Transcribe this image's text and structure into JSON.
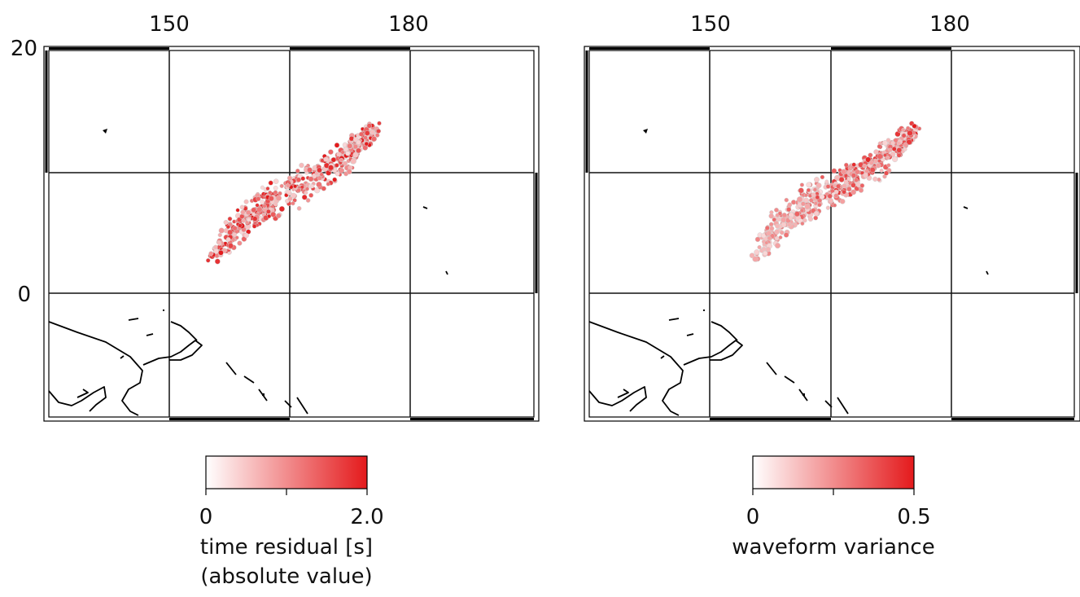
{
  "maps": [
    {
      "id": "time-residual",
      "lon_ticks": [
        "150",
        "180"
      ],
      "lat_ticks": [
        "20",
        "0"
      ],
      "colorbar": {
        "min_label": "0",
        "max_label": "2.0",
        "min": 0,
        "max": 2.0,
        "label_lines": [
          "time residual [s]",
          "(absolute value)"
        ],
        "color_low": "#ffffff",
        "color_high": "#e41a1c"
      },
      "seed": 17
    },
    {
      "id": "waveform-variance",
      "lon_ticks": [
        "150",
        "180"
      ],
      "lat_ticks": [],
      "colorbar": {
        "min_label": "0",
        "max_label": "0.5",
        "min": 0,
        "max": 0.5,
        "label_lines": [
          "waveform variance"
        ],
        "color_low": "#ffffff",
        "color_high": "#e41a1c"
      },
      "seed": 91
    }
  ],
  "colors": {
    "frame": "#000000",
    "grid": "#111111",
    "coastline": "#000000",
    "marker_outline": "#d0d0d0"
  }
}
